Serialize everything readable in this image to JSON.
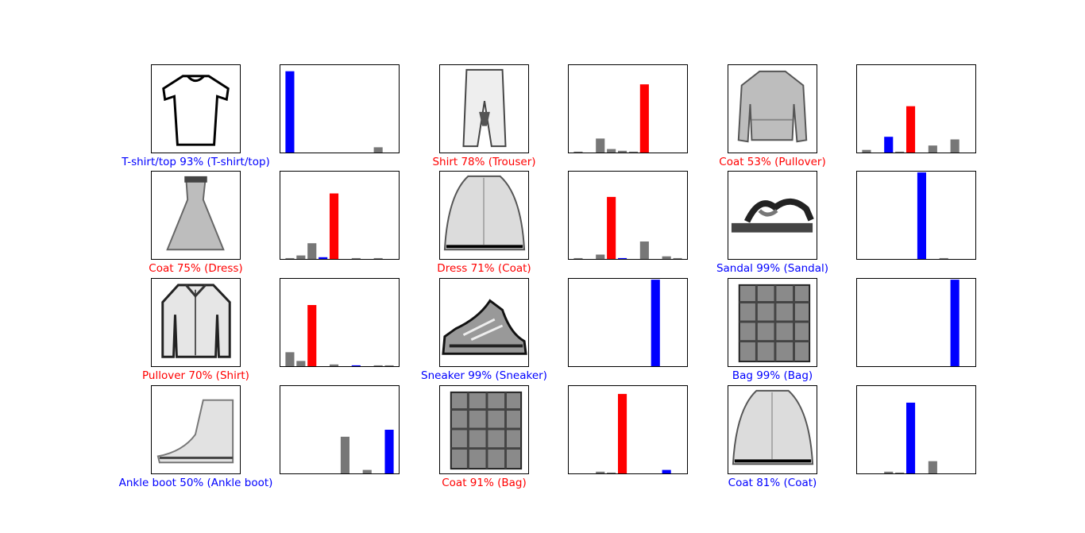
{
  "colors": {
    "correct": "#0000ff",
    "wrong": "#ff0000",
    "other": "#777777",
    "ink": "#000000"
  },
  "chart_data": {
    "type": "bar",
    "categories": [
      "0",
      "1",
      "2",
      "3",
      "4",
      "5",
      "6",
      "7",
      "8",
      "9"
    ],
    "ylim": [
      0,
      1
    ],
    "grid": false,
    "samples": [
      {
        "thumbnail_icon": "tshirt-icon",
        "caption": "T-shirt/top 93% (T-shirt/top)",
        "predicted": 0,
        "true": 0,
        "values": [
          0.93,
          0,
          0,
          0,
          0,
          0.0,
          0,
          0,
          0.06,
          0
        ]
      },
      {
        "thumbnail_icon": "trouser-icon",
        "caption": "Shirt 78% (Trouser)",
        "predicted": 6,
        "true": 1,
        "values": [
          0.01,
          0,
          0.16,
          0.04,
          0.02,
          0.01,
          0.78,
          0,
          0,
          0
        ]
      },
      {
        "thumbnail_icon": "pullover-icon",
        "caption": "Coat 53% (Pullover)",
        "predicted": 4,
        "true": 2,
        "values": [
          0.03,
          0,
          0.18,
          0.01,
          0.53,
          0,
          0.08,
          0,
          0.15,
          0
        ]
      },
      {
        "thumbnail_icon": "dress-icon",
        "caption": "Coat 75% (Dress)",
        "predicted": 4,
        "true": 3,
        "values": [
          0.01,
          0.04,
          0.18,
          0.02,
          0.75,
          0,
          0.01,
          0,
          0.01,
          0
        ]
      },
      {
        "thumbnail_icon": "coat-icon",
        "caption": "Dress 71% (Coat)",
        "predicted": 3,
        "true": 4,
        "values": [
          0.01,
          0,
          0.05,
          0.71,
          0.01,
          0,
          0.2,
          0,
          0.03,
          0.01
        ]
      },
      {
        "thumbnail_icon": "sandal-icon",
        "caption": "Sandal 99% (Sandal)",
        "predicted": 5,
        "true": 5,
        "values": [
          0,
          0,
          0,
          0,
          0,
          0.99,
          0,
          0.01,
          0,
          0
        ]
      },
      {
        "thumbnail_icon": "shirt-icon",
        "caption": "Pullover 70% (Shirt)",
        "predicted": 2,
        "true": 6,
        "values": [
          0.16,
          0.06,
          0.7,
          0,
          0.02,
          0,
          0.01,
          0,
          0.01,
          0.01
        ]
      },
      {
        "thumbnail_icon": "sneaker-icon",
        "caption": "Sneaker 99% (Sneaker)",
        "predicted": 7,
        "true": 7,
        "values": [
          0,
          0,
          0,
          0,
          0,
          0,
          0,
          0.99,
          0,
          0
        ]
      },
      {
        "thumbnail_icon": "bag-icon",
        "caption": "Bag 99% (Bag)",
        "predicted": 8,
        "true": 8,
        "values": [
          0,
          0,
          0,
          0,
          0,
          0,
          0,
          0,
          0.99,
          0
        ]
      },
      {
        "thumbnail_icon": "ankle-boot-icon",
        "caption": "Ankle boot 50% (Ankle boot)",
        "predicted": 9,
        "true": 9,
        "values": [
          0,
          0,
          0,
          0,
          0,
          0.42,
          0,
          0.04,
          0,
          0.5
        ]
      },
      {
        "thumbnail_icon": "bag-icon",
        "caption": "Coat 91% (Bag)",
        "predicted": 4,
        "true": 8,
        "values": [
          0,
          0,
          0.02,
          0.01,
          0.91,
          0,
          0,
          0,
          0.04,
          0
        ]
      },
      {
        "thumbnail_icon": "coat-icon",
        "caption": "Coat 81% (Coat)",
        "predicted": 4,
        "true": 4,
        "values": [
          0,
          0,
          0.02,
          0.01,
          0.81,
          0,
          0.14,
          0,
          0,
          0
        ]
      }
    ]
  }
}
